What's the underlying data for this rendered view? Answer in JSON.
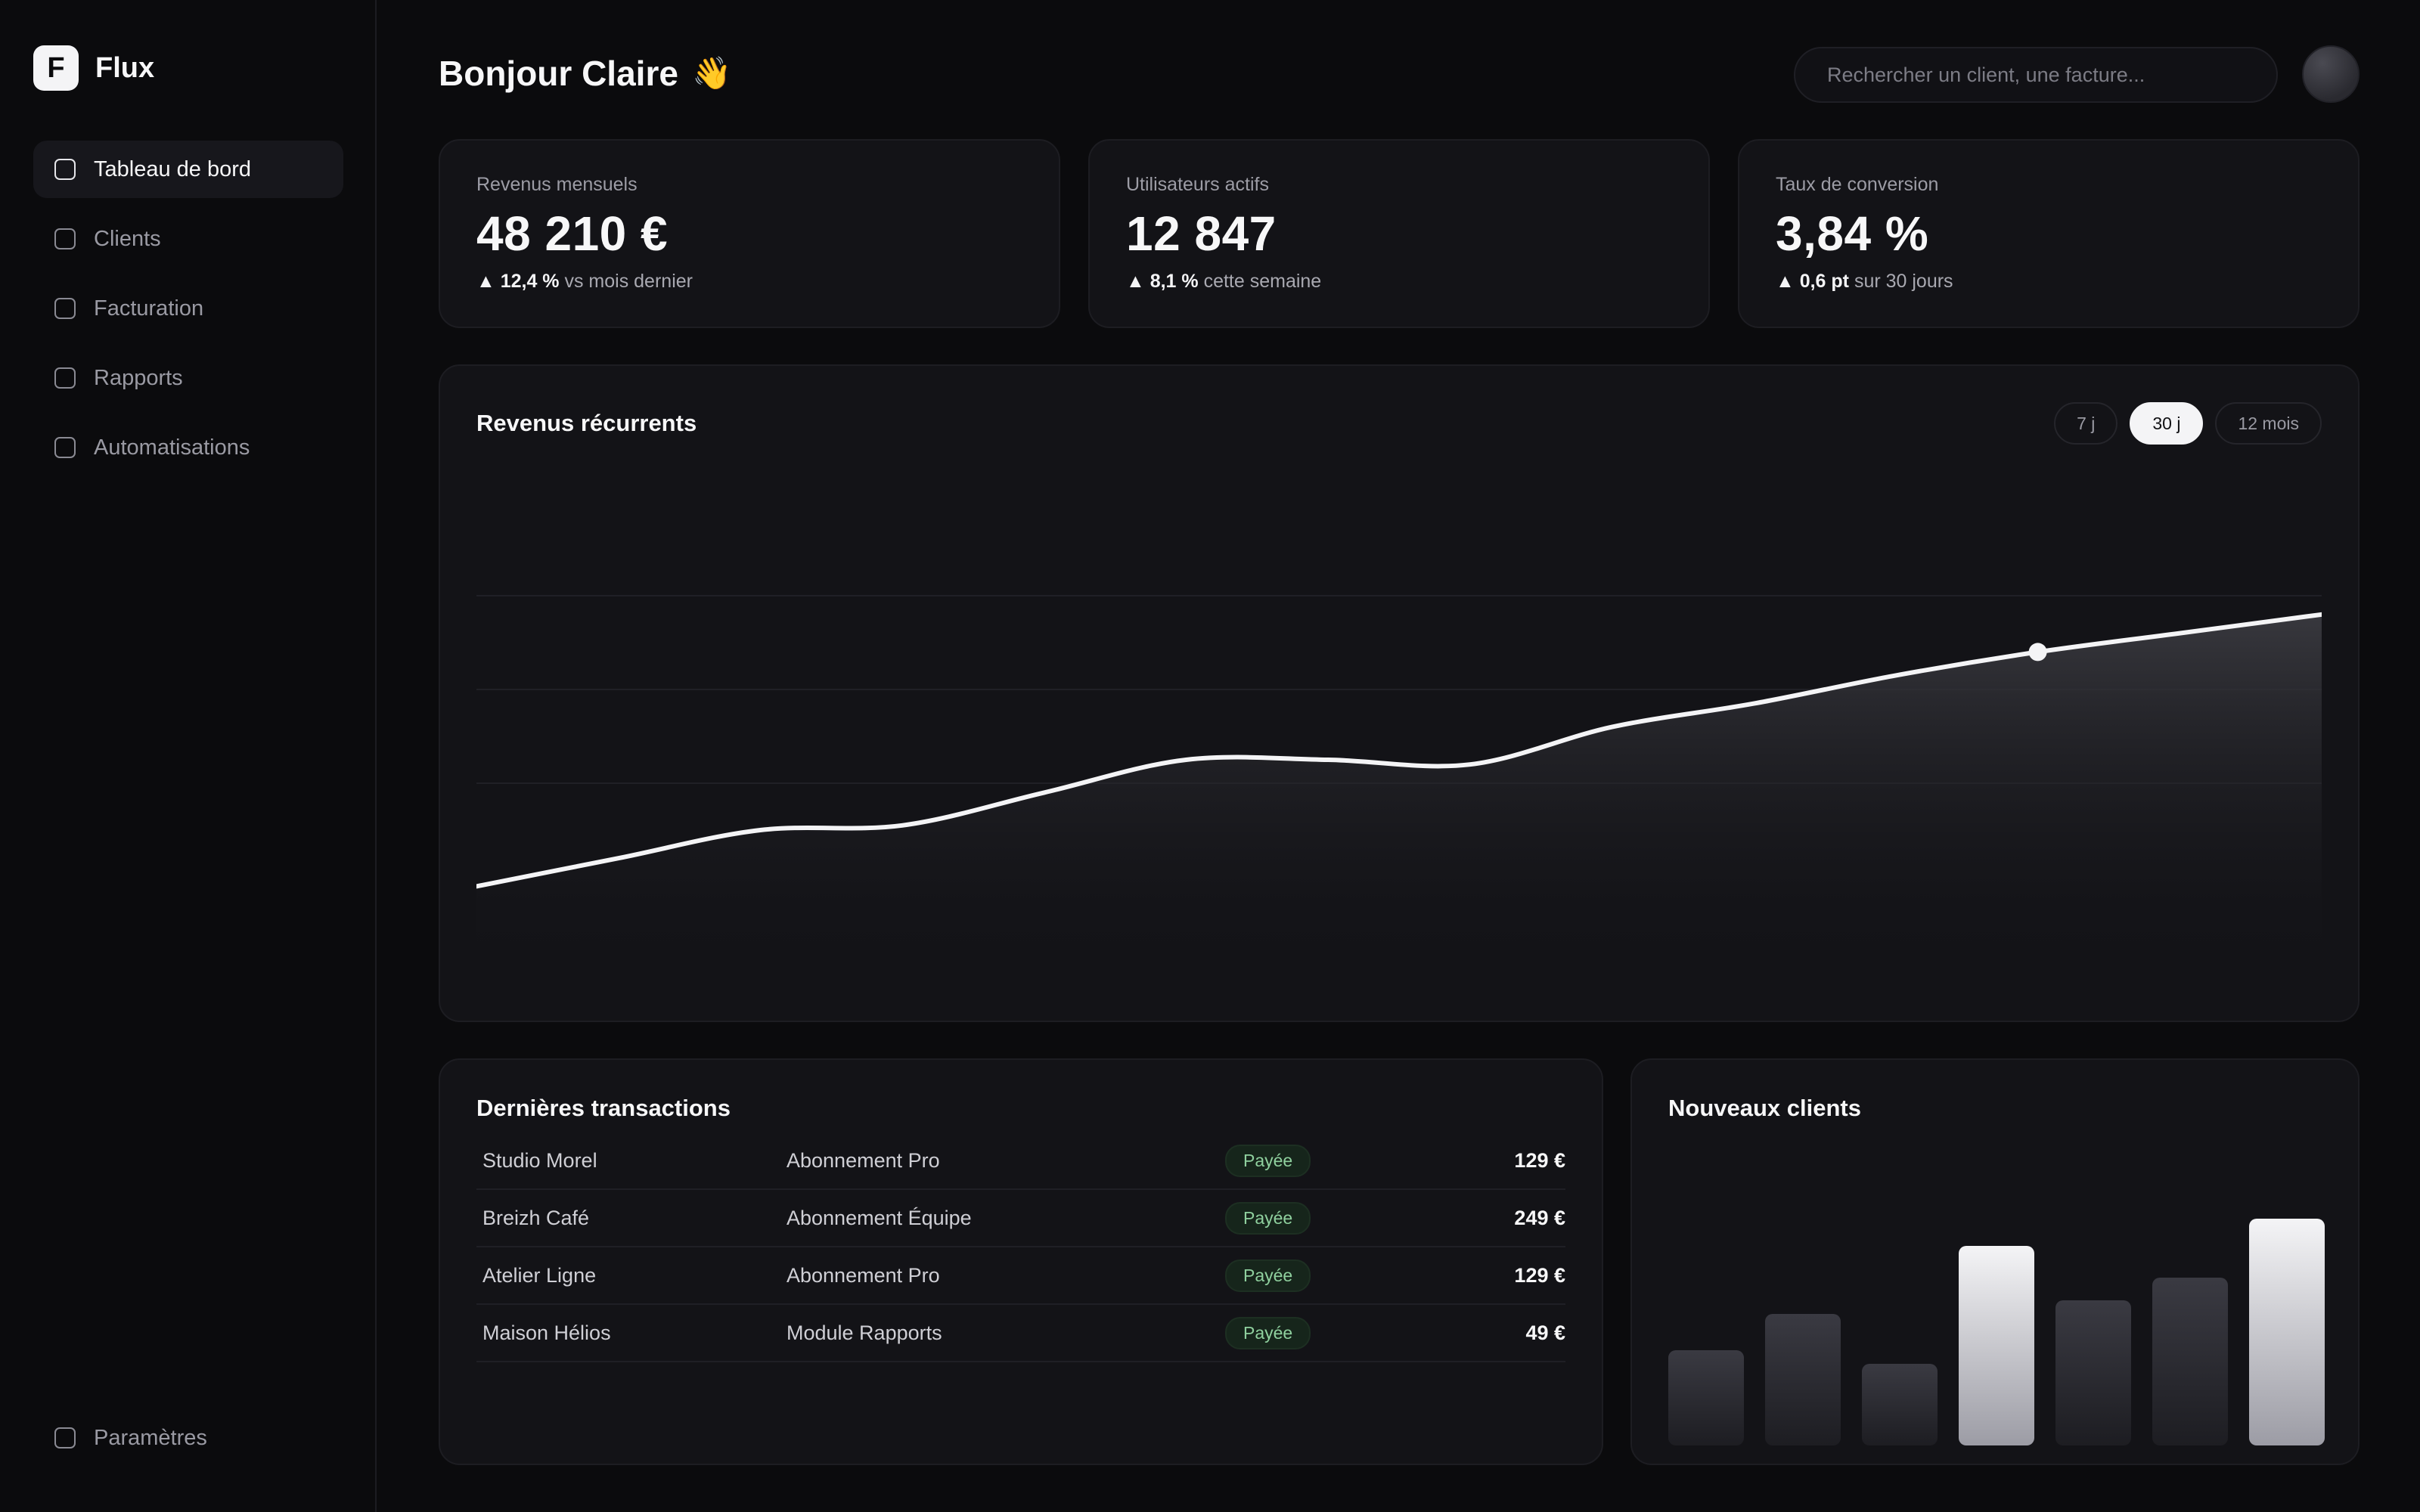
{
  "app": {
    "logo_letter": "F",
    "name": "Flux"
  },
  "sidebar": {
    "items": [
      {
        "label": "Tableau de bord",
        "active": true
      },
      {
        "label": "Clients",
        "active": false
      },
      {
        "label": "Facturation",
        "active": false
      },
      {
        "label": "Rapports",
        "active": false
      },
      {
        "label": "Automatisations",
        "active": false
      }
    ],
    "settings_label": "Paramètres"
  },
  "header": {
    "greeting": "Bonjour Claire",
    "greeting_emoji": "👋",
    "search_placeholder": "Rechercher un client, une facture..."
  },
  "kpis": [
    {
      "label": "Revenus mensuels",
      "value": "48 210 €",
      "delta": "▲ 12,4 %",
      "delta_context": " vs mois dernier"
    },
    {
      "label": "Utilisateurs actifs",
      "value": "12 847",
      "delta": "▲ 8,1 %",
      "delta_context": " cette semaine"
    },
    {
      "label": "Taux de conversion",
      "value": "3,84 %",
      "delta": "▲ 0,6 pt",
      "delta_context": " sur 30 jours"
    }
  ],
  "revenue_chart": {
    "title": "Revenus récurrents",
    "ranges": [
      "7 j",
      "30 j",
      "12 mois"
    ],
    "selected_range": "30 j"
  },
  "chart_data": [
    {
      "type": "area",
      "title": "Revenus récurrents",
      "x": [
        0,
        1,
        2,
        3,
        4,
        5,
        6,
        7,
        8,
        9,
        10,
        11,
        12,
        13
      ],
      "series": [
        {
          "values": [
            18,
            24,
            30,
            31,
            38,
            45,
            45,
            44,
            52,
            57,
            63,
            68,
            72,
            76
          ]
        }
      ],
      "highlighted_index": 11,
      "ylim": [
        0,
        100
      ],
      "grid": true
    },
    {
      "type": "bar",
      "title": "Nouveaux clients",
      "categories": [
        "1",
        "2",
        "3",
        "4",
        "5",
        "6",
        "7"
      ],
      "values": [
        42,
        58,
        36,
        88,
        64,
        74,
        100
      ],
      "highlighted": [
        false,
        false,
        false,
        true,
        false,
        false,
        true
      ]
    }
  ],
  "transactions": {
    "title": "Dernières transactions",
    "rows": [
      {
        "client": "Studio Morel",
        "product": "Abonnement Pro",
        "status": "Payée",
        "amount": "129 €"
      },
      {
        "client": "Breizh Café",
        "product": "Abonnement Équipe",
        "status": "Payée",
        "amount": "249 €"
      },
      {
        "client": "Atelier Ligne",
        "product": "Abonnement Pro",
        "status": "Payée",
        "amount": "129 €"
      },
      {
        "client": "Maison Hélios",
        "product": "Module Rapports",
        "status": "Payée",
        "amount": "49 €"
      }
    ]
  },
  "new_clients": {
    "title": "Nouveaux clients"
  },
  "colors": {
    "background": "#0b0b0d",
    "card": "#131317",
    "accent": "#f4f4f6",
    "status_paid_text": "#8fd09e",
    "status_paid_bg": "#16251b"
  }
}
